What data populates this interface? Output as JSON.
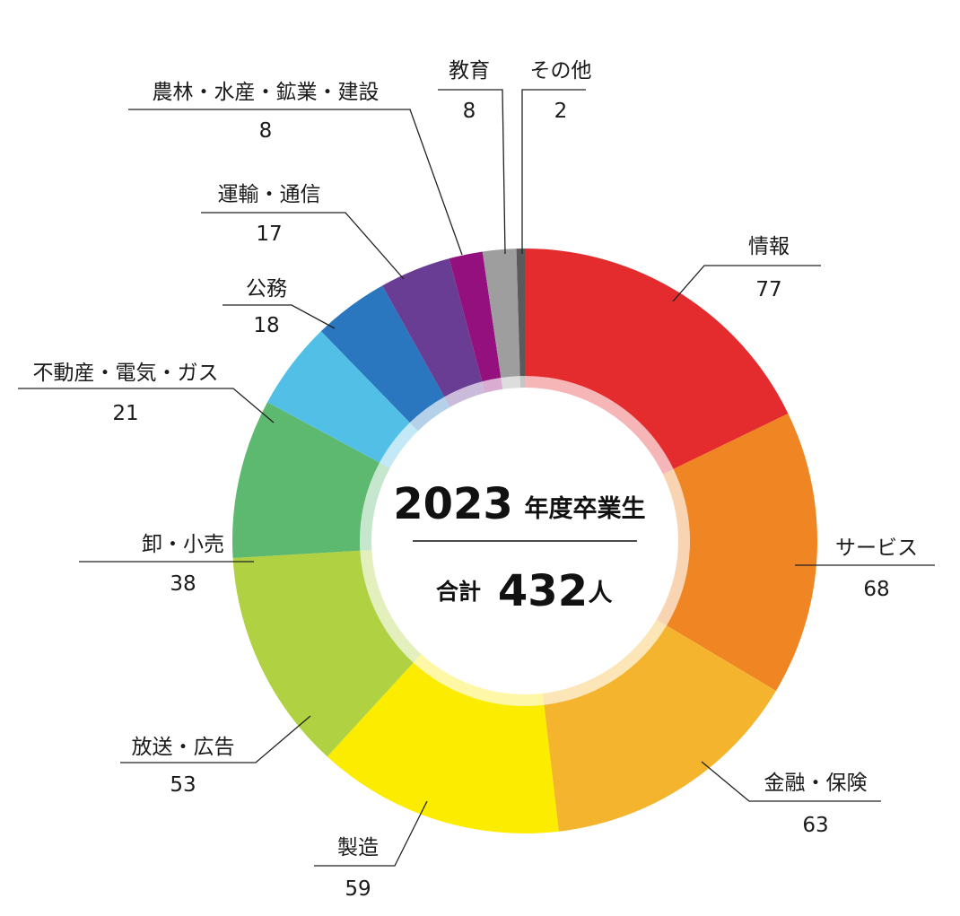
{
  "chart_data": {
    "type": "pie",
    "style": "donut",
    "title": "2023年度卒業生",
    "center": {
      "year": "2023",
      "year_suffix": "年度卒業生",
      "total_label": "合計",
      "total": "432",
      "total_unit": "人"
    },
    "categories": [
      "情報",
      "サービス",
      "金融・保険",
      "製造",
      "放送・広告",
      "卸・小売",
      "不動産・電気・ガス",
      "公務",
      "運輸・通信",
      "農林・水産・鉱業・建設",
      "教育",
      "その他"
    ],
    "values": [
      77,
      68,
      63,
      59,
      53,
      38,
      21,
      18,
      17,
      8,
      8,
      2
    ],
    "colors": [
      "#e42c2e",
      "#ef8523",
      "#f5b42e",
      "#fcec00",
      "#b0d141",
      "#5db96f",
      "#52c0e6",
      "#2a77c0",
      "#6a3d95",
      "#95107f",
      "#9e9e9e",
      "#5a5a5a"
    ],
    "legend": "labels outside with leader lines"
  }
}
